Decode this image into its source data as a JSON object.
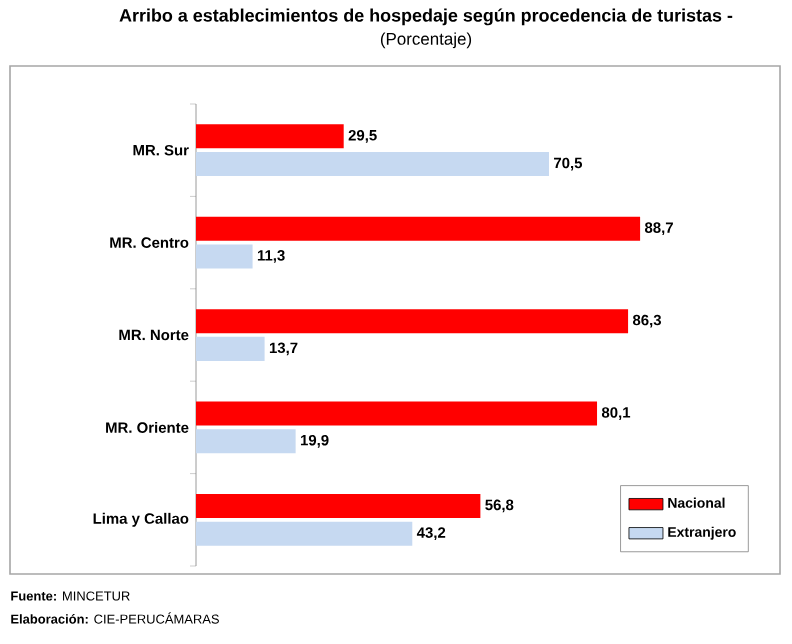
{
  "chart_data": {
    "type": "bar",
    "orientation": "horizontal",
    "title": "Arribo a establecimientos de hospedaje según procedencia de turistas -",
    "subtitle": "(Porcentaje)",
    "categories": [
      "MR. Sur",
      "MR. Centro",
      "MR. Norte",
      "MR. Oriente",
      "Lima y Callao"
    ],
    "series": [
      {
        "name": "Nacional",
        "color": "#ff0000",
        "values": [
          29.5,
          88.7,
          86.3,
          80.1,
          56.8
        ],
        "value_labels": [
          "29,5",
          "88,7",
          "86,3",
          "80,1",
          "56,8"
        ]
      },
      {
        "name": "Extranjero",
        "color": "#c6d9f1",
        "values": [
          70.5,
          11.3,
          13.7,
          19.9,
          43.2
        ],
        "value_labels": [
          "70,5",
          "11,3",
          "13,7",
          "19,9",
          "43,2"
        ]
      }
    ],
    "legend": "bottom right",
    "annotations": [
      "**Fuente:** MINCETUR",
      "**Elaboración:** CIE-PERUCÁMARAS"
    ]
  }
}
